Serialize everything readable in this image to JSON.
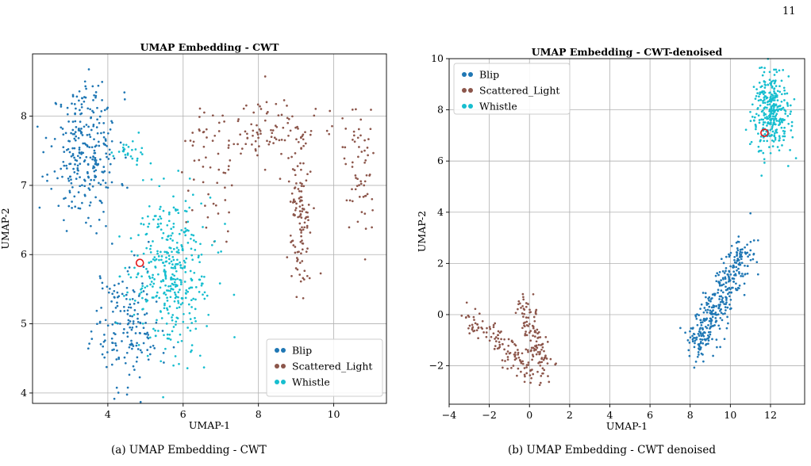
{
  "page_number": "11",
  "captions": {
    "a": "(a) UMAP Embedding - CWT",
    "b": "(b) UMAP Embedding - CWT denoised"
  },
  "colors": {
    "Blip": "#1f77b4",
    "Scattered_Light": "#8c564b",
    "Whistle": "#17becf",
    "highlight": "#e31a1c"
  },
  "chart_data": [
    {
      "type": "scatter",
      "title": "UMAP Embedding - CWT",
      "xlabel": "UMAP-1",
      "ylabel": "UMAP-2",
      "xlim": [
        2.0,
        11.4
      ],
      "ylim": [
        3.85,
        8.9
      ],
      "xticks": [
        4,
        6,
        8,
        10
      ],
      "yticks": [
        4,
        5,
        6,
        7,
        8
      ],
      "grid": true,
      "legend": "bottom-right",
      "highlight_point": {
        "x": 4.85,
        "y": 5.88
      },
      "series": [
        {
          "name": "Blip",
          "clusters": [
            {
              "cx": 3.4,
              "cy": 7.45,
              "sx": 0.45,
              "sy": 0.45,
              "n": 260
            },
            {
              "cx": 4.5,
              "cy": 5.0,
              "sx": 0.45,
              "sy": 0.45,
              "n": 170
            },
            {
              "cx": 3.4,
              "cy": 8.3,
              "sx": 0.3,
              "sy": 0.15,
              "n": 25
            }
          ]
        },
        {
          "name": "Scattered_Light",
          "clusters": [
            {
              "cx": 8.0,
              "cy": 7.8,
              "sx": 0.8,
              "sy": 0.25,
              "n": 110
            },
            {
              "cx": 9.1,
              "cy": 6.6,
              "sx": 0.12,
              "sy": 0.55,
              "n": 120
            },
            {
              "cx": 10.7,
              "cy": 7.3,
              "sx": 0.2,
              "sy": 0.45,
              "n": 60
            },
            {
              "cx": 6.6,
              "cy": 7.0,
              "sx": 0.35,
              "sy": 0.45,
              "n": 35
            }
          ]
        },
        {
          "name": "Whistle",
          "clusters": [
            {
              "cx": 5.7,
              "cy": 5.7,
              "sx": 0.55,
              "sy": 0.55,
              "n": 380
            },
            {
              "cx": 4.7,
              "cy": 7.45,
              "sx": 0.25,
              "sy": 0.1,
              "n": 25
            }
          ]
        }
      ]
    },
    {
      "type": "scatter",
      "title": "UMAP Embedding - CWT-denoised",
      "xlabel": "UMAP-1",
      "ylabel": "UMAP-2",
      "xlim": [
        -4.0,
        13.7
      ],
      "ylim": [
        -3.5,
        10.0
      ],
      "xticks": [
        -4,
        -2,
        0,
        2,
        4,
        6,
        8,
        10,
        12
      ],
      "yticks": [
        -2,
        0,
        2,
        4,
        6,
        8,
        10
      ],
      "grid": true,
      "legend": "top-left",
      "highlight_point": {
        "x": 11.7,
        "y": 7.1
      },
      "series": [
        {
          "name": "Blip",
          "clusters": [
            {
              "x1": 8.2,
              "y1": -1.4,
              "x2": 10.8,
              "y2": 2.6,
              "spread": 0.35,
              "n": 360
            }
          ]
        },
        {
          "name": "Scattered_Light",
          "clusters": [
            {
              "x1": -3.1,
              "y1": 0.0,
              "x2": 0.5,
              "y2": -2.5,
              "spread": 0.3,
              "n": 130
            },
            {
              "x1": -0.3,
              "y1": 0.6,
              "x2": 0.8,
              "y2": -2.3,
              "spread": 0.25,
              "n": 110
            }
          ]
        },
        {
          "name": "Whistle",
          "clusters": [
            {
              "cx": 12.0,
              "cy": 7.9,
              "sx": 0.45,
              "sy": 0.75,
              "n": 320
            }
          ]
        }
      ]
    }
  ]
}
